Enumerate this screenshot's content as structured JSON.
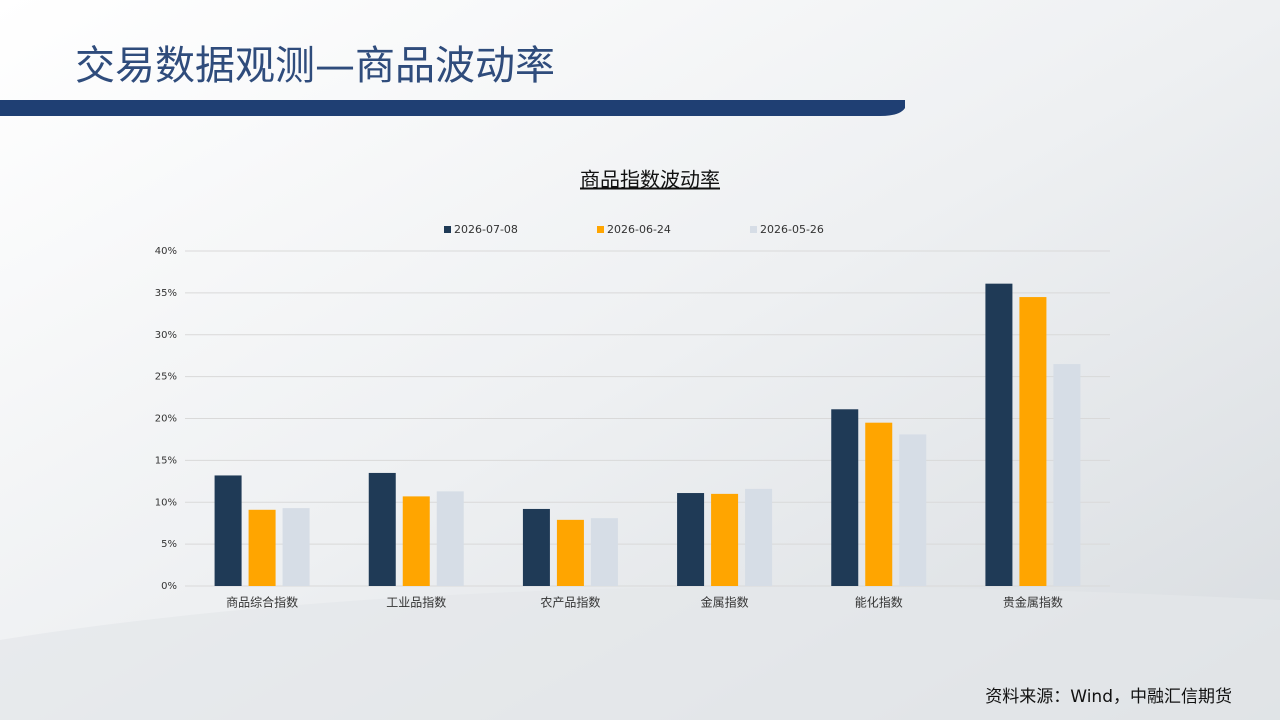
{
  "header": {
    "title": "交易数据观测—商品波动率"
  },
  "chart_data": {
    "type": "bar",
    "title": "商品指数波动率",
    "categories": [
      "商品综合指数",
      "工业品指数",
      "农产品指数",
      "金属指数",
      "能化指数",
      "贵金属指数"
    ],
    "series": [
      {
        "name": "2026-07-08",
        "color": "#1f3a56",
        "values": [
          13.2,
          13.5,
          9.2,
          11.1,
          21.1,
          36.1
        ]
      },
      {
        "name": "2026-06-24",
        "color": "#ffa500",
        "values": [
          9.1,
          10.7,
          7.9,
          11.0,
          19.5,
          34.5
        ]
      },
      {
        "name": "2026-05-26",
        "color": "#d6dde6",
        "values": [
          9.3,
          11.3,
          8.1,
          11.6,
          18.1,
          26.5
        ]
      }
    ],
    "ylim": [
      0,
      40
    ],
    "yticks": [
      {
        "value": 0,
        "label": "0%"
      },
      {
        "value": 5,
        "label": "5%"
      },
      {
        "value": 10,
        "label": "10%"
      },
      {
        "value": 15,
        "label": "15%"
      },
      {
        "value": 20,
        "label": "20%"
      },
      {
        "value": 25,
        "label": "25%"
      },
      {
        "value": 30,
        "label": "30%"
      },
      {
        "value": 35,
        "label": "35%"
      },
      {
        "value": 40,
        "label": "40%"
      }
    ],
    "grid": true,
    "legend": "top"
  },
  "source": "资料来源：Wind，中融汇信期货"
}
